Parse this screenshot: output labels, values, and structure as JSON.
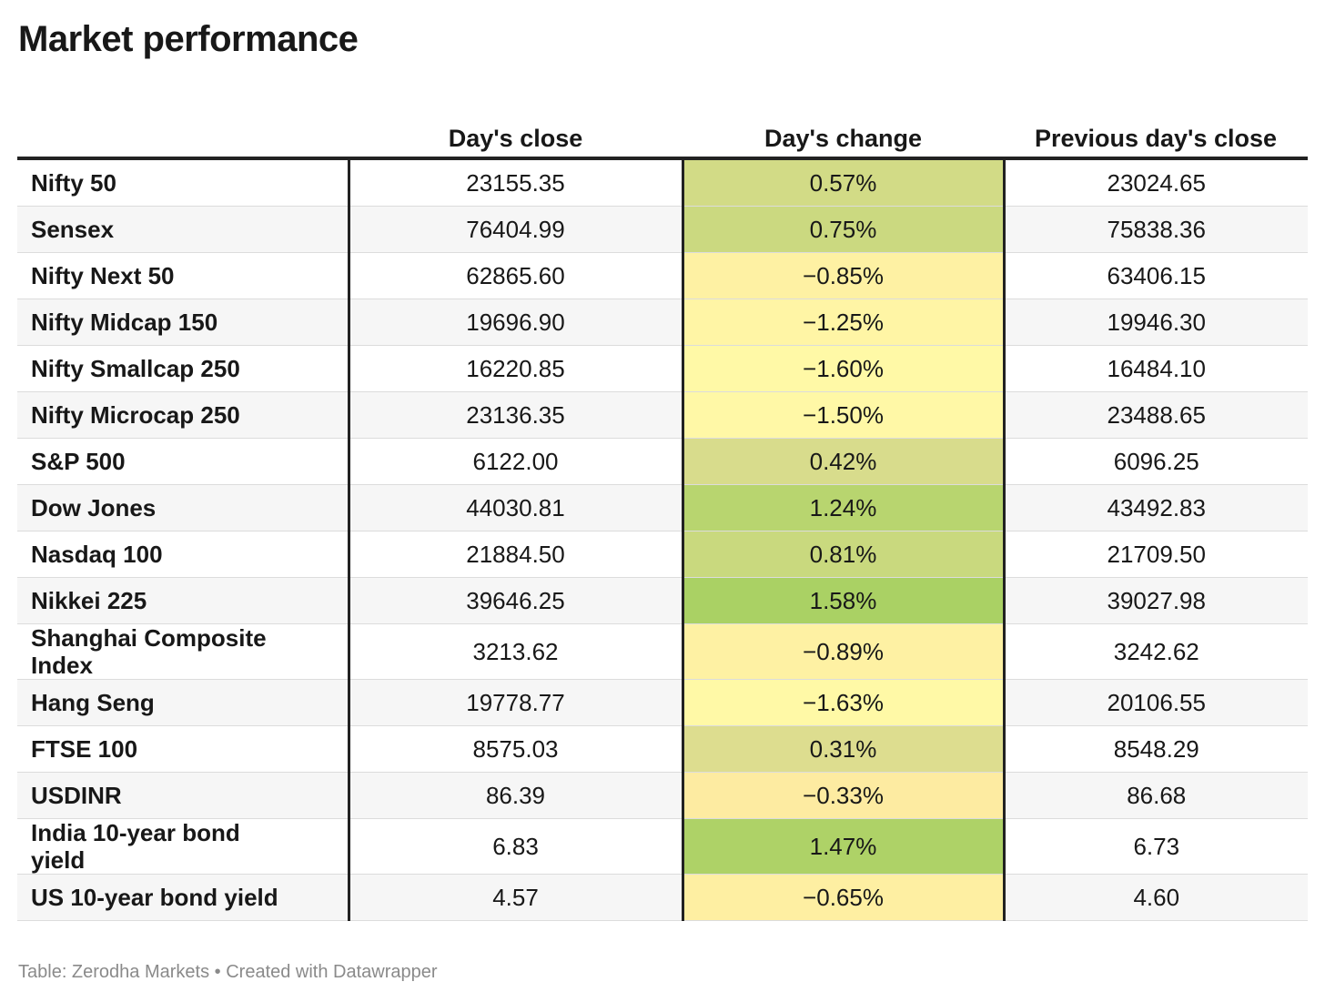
{
  "title": "Market performance",
  "source": "Table: Zerodha Markets • Created with Datawrapper",
  "colors": {
    "negative_light": "#fff9a6",
    "negative_strong": "#fde8a0",
    "positive_strong": "#a8d162"
  },
  "chart_data": {
    "type": "table",
    "columns": [
      "",
      "Day's close",
      "Day's change",
      "Previous day's close"
    ],
    "rows": [
      {
        "name": "Nifty 50",
        "close": "23155.35",
        "change": "0.57%",
        "change_value": 0.57,
        "prev": "23024.65"
      },
      {
        "name": "Sensex",
        "close": "76404.99",
        "change": "0.75%",
        "change_value": 0.75,
        "prev": "75838.36"
      },
      {
        "name": "Nifty Next 50",
        "close": "62865.60",
        "change": "−0.85%",
        "change_value": -0.85,
        "prev": "63406.15"
      },
      {
        "name": "Nifty Midcap 150",
        "close": "19696.90",
        "change": "−1.25%",
        "change_value": -1.25,
        "prev": "19946.30"
      },
      {
        "name": "Nifty Smallcap 250",
        "close": "16220.85",
        "change": "−1.60%",
        "change_value": -1.6,
        "prev": "16484.10"
      },
      {
        "name": "Nifty Microcap 250",
        "close": "23136.35",
        "change": "−1.50%",
        "change_value": -1.5,
        "prev": "23488.65"
      },
      {
        "name": "S&P 500",
        "close": "6122.00",
        "change": "0.42%",
        "change_value": 0.42,
        "prev": "6096.25"
      },
      {
        "name": "Dow Jones",
        "close": "44030.81",
        "change": "1.24%",
        "change_value": 1.24,
        "prev": "43492.83"
      },
      {
        "name": "Nasdaq 100",
        "close": "21884.50",
        "change": "0.81%",
        "change_value": 0.81,
        "prev": "21709.50"
      },
      {
        "name": "Nikkei 225",
        "close": "39646.25",
        "change": "1.58%",
        "change_value": 1.58,
        "prev": "39027.98"
      },
      {
        "name": "Shanghai Composite Index",
        "close": "3213.62",
        "change": "−0.89%",
        "change_value": -0.89,
        "prev": "3242.62"
      },
      {
        "name": "Hang Seng",
        "close": "19778.77",
        "change": "−1.63%",
        "change_value": -1.63,
        "prev": "20106.55"
      },
      {
        "name": "FTSE 100",
        "close": "8575.03",
        "change": "0.31%",
        "change_value": 0.31,
        "prev": "8548.29"
      },
      {
        "name": "USDINR",
        "close": "86.39",
        "change": "−0.33%",
        "change_value": -0.33,
        "prev": "86.68"
      },
      {
        "name": "India 10-year bond yield",
        "close": "6.83",
        "change": "1.47%",
        "change_value": 1.47,
        "prev": "6.73"
      },
      {
        "name": "US 10-year bond yield",
        "close": "4.57",
        "change": "−0.65%",
        "change_value": -0.65,
        "prev": "4.60"
      }
    ]
  }
}
